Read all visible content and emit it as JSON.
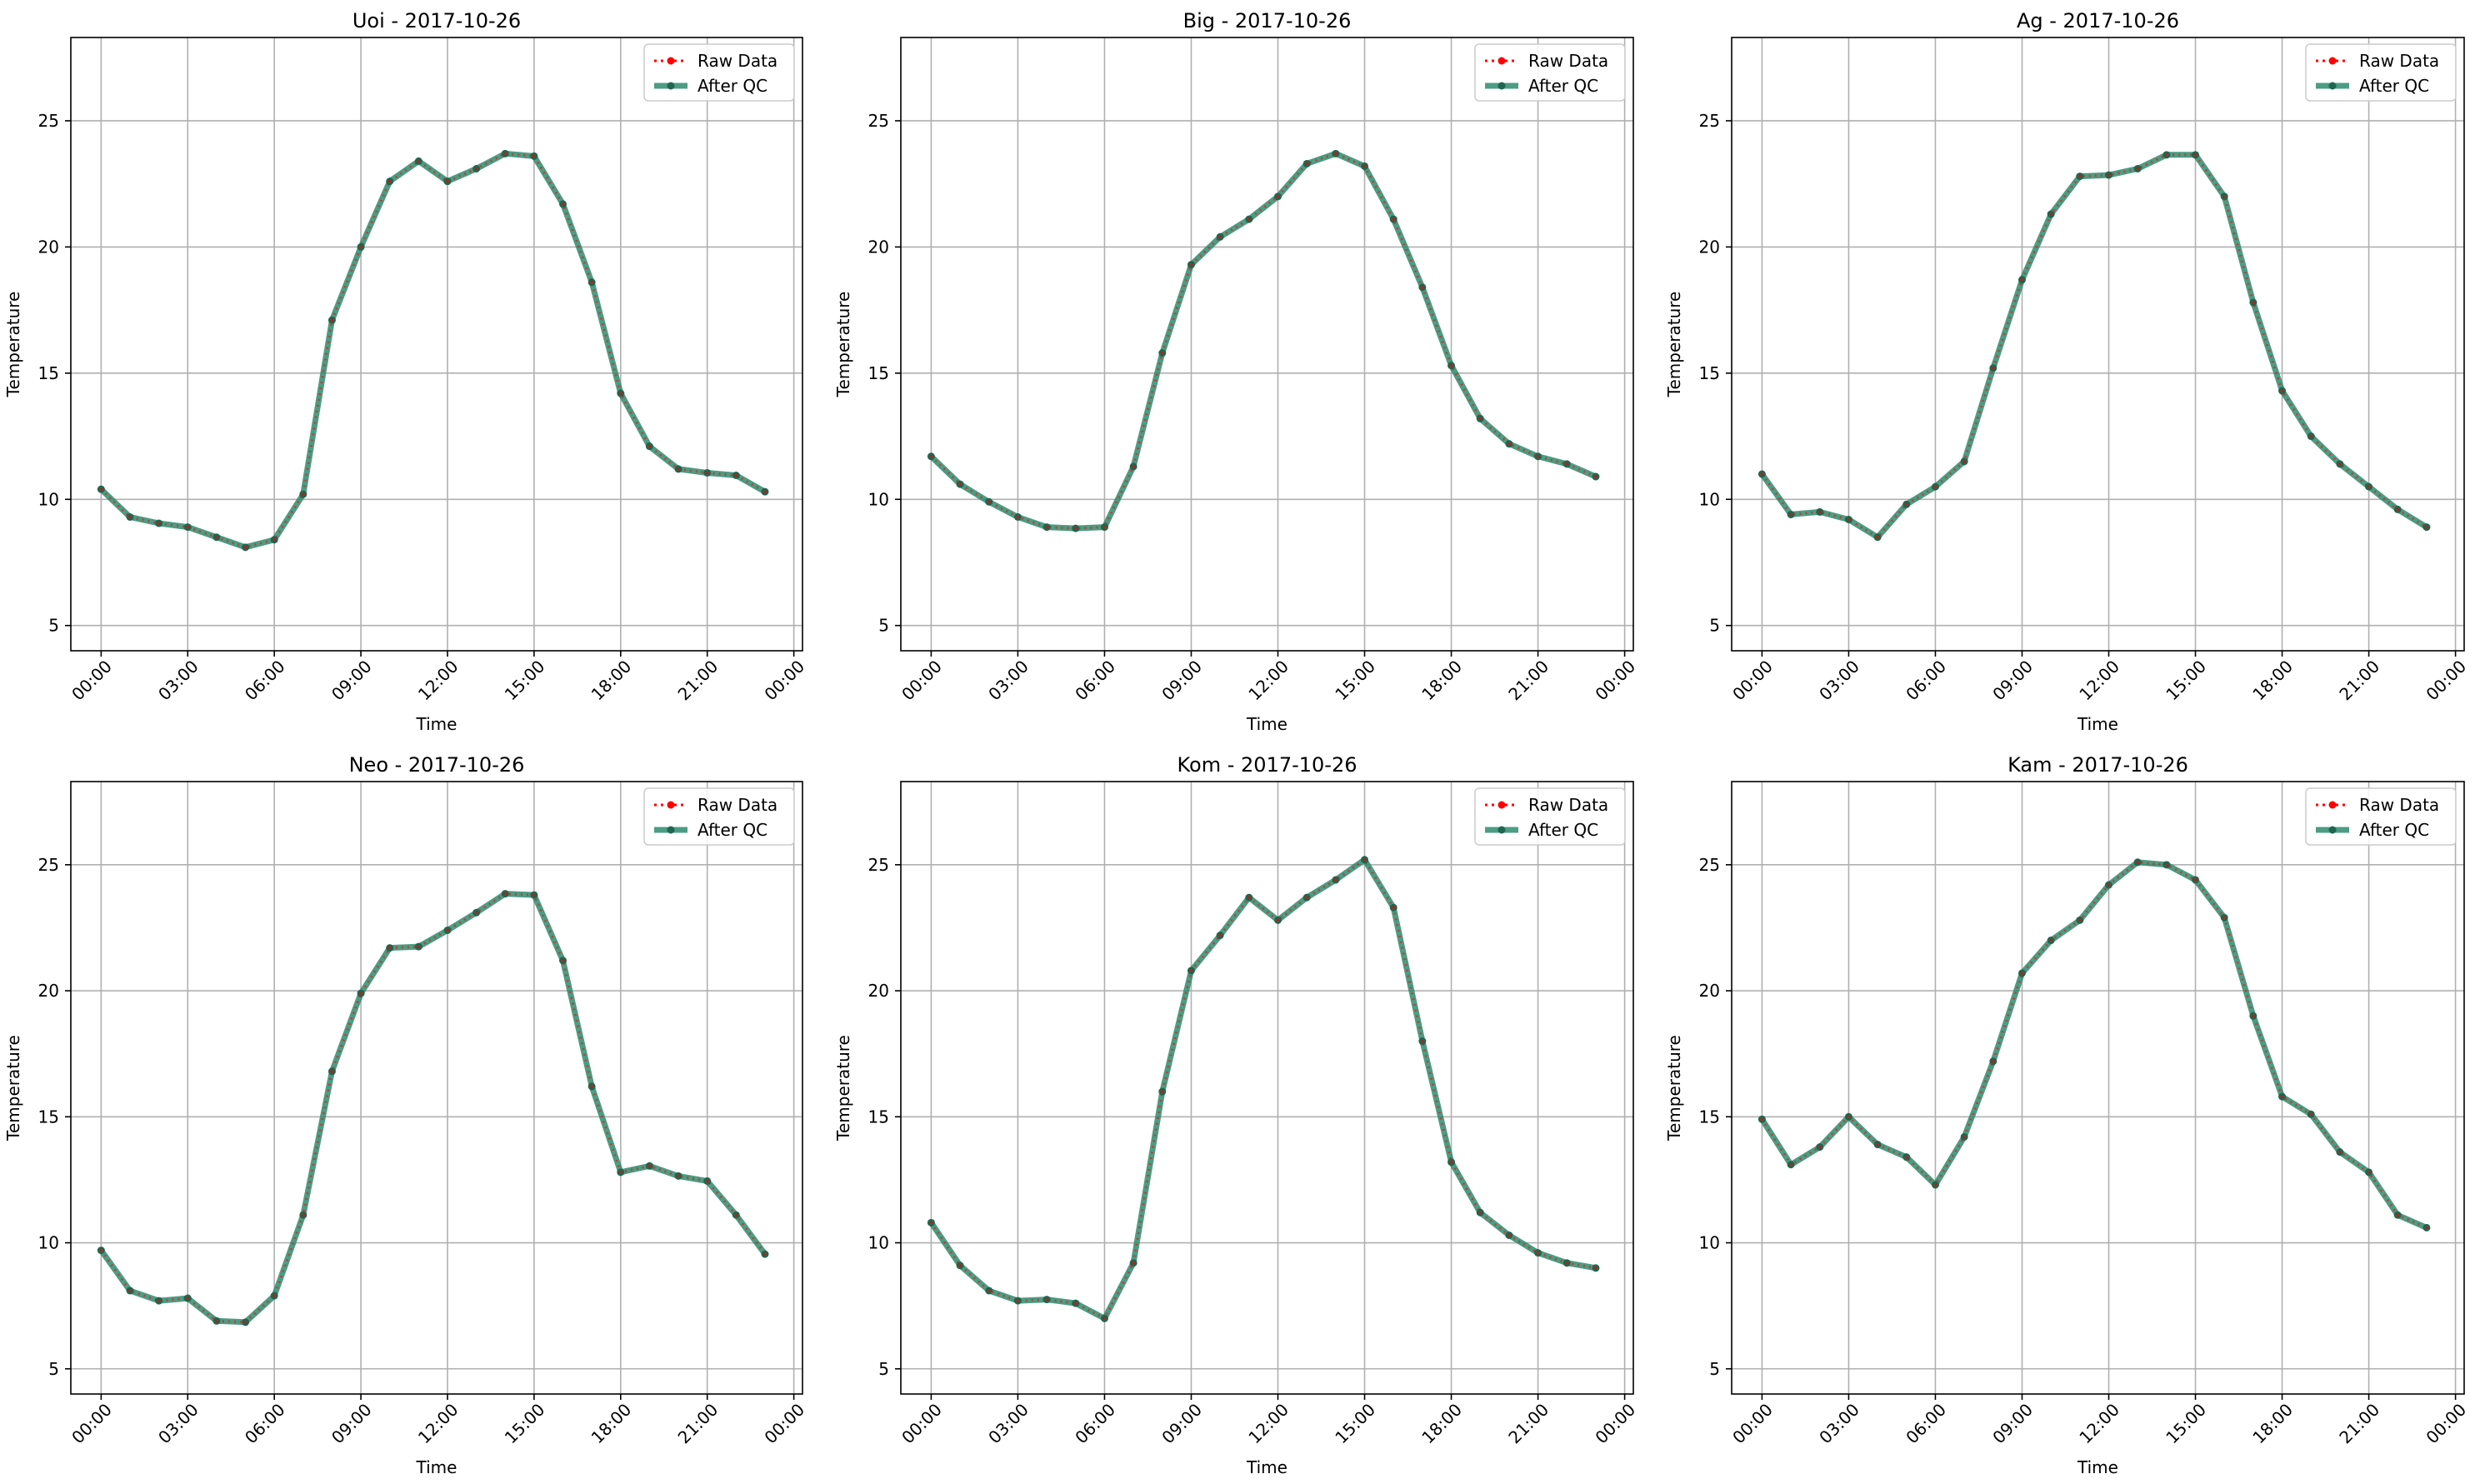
{
  "figure": {
    "legend_labels": {
      "raw": "Raw Data",
      "qc": "After QC"
    },
    "x_tick_labels": [
      "00:00",
      "03:00",
      "06:00",
      "09:00",
      "12:00",
      "15:00",
      "18:00",
      "21:00",
      "00:00"
    ],
    "y_tick_labels": [
      "5",
      "10",
      "15",
      "20",
      "25"
    ],
    "xlabel": "Time",
    "ylabel": "Temperature"
  },
  "colors": {
    "raw": "#ff0000",
    "qc_line": "#2e8b6f",
    "qc_marker": "#1f6650",
    "grid": "#b0b0b0",
    "axes": "#000000"
  },
  "chart_data": [
    {
      "type": "line",
      "title": "Uoi - 2017-10-26",
      "xlabel": "Time",
      "ylabel": "Temperature",
      "x": [
        "00:00",
        "01:00",
        "02:00",
        "03:00",
        "04:00",
        "05:00",
        "06:00",
        "07:00",
        "08:00",
        "09:00",
        "10:00",
        "11:00",
        "12:00",
        "13:00",
        "14:00",
        "15:00",
        "16:00",
        "17:00",
        "18:00",
        "19:00",
        "20:00",
        "21:00",
        "22:00",
        "23:00"
      ],
      "xlim": [
        "2017-10-26 00:00",
        "2017-10-27 00:00"
      ],
      "ylim": [
        4,
        28
      ],
      "grid": true,
      "legend_position": "top-right",
      "series": [
        {
          "name": "Raw Data",
          "values": [
            10.4,
            9.3,
            9.05,
            8.9,
            8.5,
            8.1,
            8.4,
            10.2,
            17.1,
            20.0,
            22.6,
            23.4,
            22.6,
            23.1,
            23.7,
            23.6,
            21.7,
            18.6,
            14.2,
            12.1,
            11.2,
            11.05,
            10.95,
            10.3
          ]
        },
        {
          "name": "After QC",
          "values": [
            10.4,
            9.3,
            9.05,
            8.9,
            8.5,
            8.1,
            8.4,
            10.2,
            17.1,
            20.0,
            22.6,
            23.4,
            22.6,
            23.1,
            23.7,
            23.6,
            21.7,
            18.6,
            14.2,
            12.1,
            11.2,
            11.05,
            10.95,
            10.3
          ]
        }
      ]
    },
    {
      "type": "line",
      "title": "Big - 2017-10-26",
      "xlabel": "Time",
      "ylabel": "Temperature",
      "x": [
        "00:00",
        "01:00",
        "02:00",
        "03:00",
        "04:00",
        "05:00",
        "06:00",
        "07:00",
        "08:00",
        "09:00",
        "10:00",
        "11:00",
        "12:00",
        "13:00",
        "14:00",
        "15:00",
        "16:00",
        "17:00",
        "18:00",
        "19:00",
        "20:00",
        "21:00",
        "22:00",
        "23:00"
      ],
      "xlim": [
        "2017-10-26 00:00",
        "2017-10-27 00:00"
      ],
      "ylim": [
        4,
        28
      ],
      "grid": true,
      "legend_position": "top-right",
      "series": [
        {
          "name": "Raw Data",
          "values": [
            11.7,
            10.6,
            9.9,
            9.3,
            8.9,
            8.85,
            8.9,
            11.3,
            15.8,
            19.3,
            20.4,
            21.1,
            22.0,
            23.3,
            23.7,
            23.2,
            21.1,
            18.4,
            15.3,
            13.2,
            12.2,
            11.7,
            11.4,
            10.9
          ]
        },
        {
          "name": "After QC",
          "values": [
            11.7,
            10.6,
            9.9,
            9.3,
            8.9,
            8.85,
            8.9,
            11.3,
            15.8,
            19.3,
            20.4,
            21.1,
            22.0,
            23.3,
            23.7,
            23.2,
            21.1,
            18.4,
            15.3,
            13.2,
            12.2,
            11.7,
            11.4,
            10.9
          ]
        }
      ]
    },
    {
      "type": "line",
      "title": "Ag - 2017-10-26",
      "xlabel": "Time",
      "ylabel": "Temperature",
      "x": [
        "00:00",
        "01:00",
        "02:00",
        "03:00",
        "04:00",
        "05:00",
        "06:00",
        "07:00",
        "08:00",
        "09:00",
        "10:00",
        "11:00",
        "12:00",
        "13:00",
        "14:00",
        "15:00",
        "16:00",
        "17:00",
        "18:00",
        "19:00",
        "20:00",
        "21:00",
        "22:00",
        "23:00"
      ],
      "xlim": [
        "2017-10-26 00:00",
        "2017-10-27 00:00"
      ],
      "ylim": [
        4,
        28
      ],
      "grid": true,
      "legend_position": "top-right",
      "series": [
        {
          "name": "Raw Data",
          "values": [
            11.0,
            9.4,
            9.5,
            9.2,
            8.5,
            9.8,
            10.5,
            11.5,
            15.2,
            18.7,
            21.3,
            22.8,
            22.85,
            23.1,
            23.65,
            23.65,
            22.0,
            17.8,
            14.3,
            12.5,
            11.4,
            10.5,
            9.6,
            8.9
          ]
        },
        {
          "name": "After QC",
          "values": [
            11.0,
            9.4,
            9.5,
            9.2,
            8.5,
            9.8,
            10.5,
            11.5,
            15.2,
            18.7,
            21.3,
            22.8,
            22.85,
            23.1,
            23.65,
            23.65,
            22.0,
            17.8,
            14.3,
            12.5,
            11.4,
            10.5,
            9.6,
            8.9
          ]
        }
      ]
    },
    {
      "type": "line",
      "title": "Neo - 2017-10-26",
      "xlabel": "Time",
      "ylabel": "Temperature",
      "x": [
        "00:00",
        "01:00",
        "02:00",
        "03:00",
        "04:00",
        "05:00",
        "06:00",
        "07:00",
        "08:00",
        "09:00",
        "10:00",
        "11:00",
        "12:00",
        "13:00",
        "14:00",
        "15:00",
        "16:00",
        "17:00",
        "18:00",
        "19:00",
        "20:00",
        "21:00",
        "22:00",
        "23:00"
      ],
      "xlim": [
        "2017-10-26 00:00",
        "2017-10-27 00:00"
      ],
      "ylim": [
        4,
        28
      ],
      "grid": true,
      "legend_position": "top-right",
      "series": [
        {
          "name": "Raw Data",
          "values": [
            9.7,
            8.1,
            7.7,
            7.8,
            6.9,
            6.85,
            7.9,
            11.1,
            16.8,
            19.9,
            21.7,
            21.75,
            22.4,
            23.1,
            23.85,
            23.8,
            21.2,
            16.2,
            12.8,
            13.05,
            12.65,
            12.45,
            11.1,
            9.55
          ]
        },
        {
          "name": "After QC",
          "values": [
            9.7,
            8.1,
            7.7,
            7.8,
            6.9,
            6.85,
            7.9,
            11.1,
            16.8,
            19.9,
            21.7,
            21.75,
            22.4,
            23.1,
            23.85,
            23.8,
            21.2,
            16.2,
            12.8,
            13.05,
            12.65,
            12.45,
            11.1,
            9.55
          ]
        }
      ]
    },
    {
      "type": "line",
      "title": "Kom - 2017-10-26",
      "xlabel": "Time",
      "ylabel": "Temperature",
      "x": [
        "00:00",
        "01:00",
        "02:00",
        "03:00",
        "04:00",
        "05:00",
        "06:00",
        "07:00",
        "08:00",
        "09:00",
        "10:00",
        "11:00",
        "12:00",
        "13:00",
        "14:00",
        "15:00",
        "16:00",
        "17:00",
        "18:00",
        "19:00",
        "20:00",
        "21:00",
        "22:00",
        "23:00"
      ],
      "xlim": [
        "2017-10-26 00:00",
        "2017-10-27 00:00"
      ],
      "ylim": [
        4,
        28
      ],
      "grid": true,
      "legend_position": "top-right",
      "series": [
        {
          "name": "Raw Data",
          "values": [
            10.8,
            9.1,
            8.1,
            7.7,
            7.75,
            7.6,
            7.0,
            9.2,
            16.0,
            20.8,
            22.2,
            23.7,
            22.8,
            23.7,
            24.4,
            25.2,
            23.3,
            18.0,
            13.2,
            11.2,
            10.3,
            9.6,
            9.2,
            9.0
          ]
        },
        {
          "name": "After QC",
          "values": [
            10.8,
            9.1,
            8.1,
            7.7,
            7.75,
            7.6,
            7.0,
            9.2,
            16.0,
            20.8,
            22.2,
            23.7,
            22.8,
            23.7,
            24.4,
            25.2,
            23.3,
            18.0,
            13.2,
            11.2,
            10.3,
            9.6,
            9.2,
            9.0
          ]
        }
      ]
    },
    {
      "type": "line",
      "title": "Kam - 2017-10-26",
      "xlabel": "Time",
      "ylabel": "Temperature",
      "x": [
        "00:00",
        "01:00",
        "02:00",
        "03:00",
        "04:00",
        "05:00",
        "06:00",
        "07:00",
        "08:00",
        "09:00",
        "10:00",
        "11:00",
        "12:00",
        "13:00",
        "14:00",
        "15:00",
        "16:00",
        "17:00",
        "18:00",
        "19:00",
        "20:00",
        "21:00",
        "22:00",
        "23:00"
      ],
      "xlim": [
        "2017-10-26 00:00",
        "2017-10-27 00:00"
      ],
      "ylim": [
        4,
        28
      ],
      "grid": true,
      "legend_position": "top-right",
      "series": [
        {
          "name": "Raw Data",
          "values": [
            14.9,
            13.1,
            13.8,
            15.0,
            13.9,
            13.4,
            12.3,
            14.2,
            17.2,
            20.7,
            22.0,
            22.8,
            24.2,
            25.1,
            25.0,
            24.4,
            22.9,
            19.0,
            15.8,
            15.1,
            13.6,
            12.8,
            11.1,
            10.6
          ]
        },
        {
          "name": "After QC",
          "values": [
            14.9,
            13.1,
            13.8,
            15.0,
            13.9,
            13.4,
            12.3,
            14.2,
            17.2,
            20.7,
            22.0,
            22.8,
            24.2,
            25.1,
            25.0,
            24.4,
            22.9,
            19.0,
            15.8,
            15.1,
            13.6,
            12.8,
            11.1,
            10.6
          ]
        }
      ]
    }
  ]
}
